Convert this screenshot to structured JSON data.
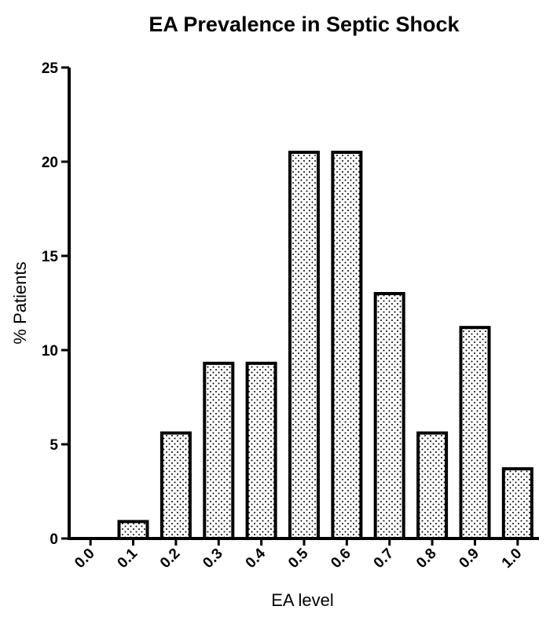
{
  "chart_data": {
    "type": "bar",
    "title": "EA Prevalence in Septic Shock",
    "xlabel": "EA level",
    "ylabel": "% Patients",
    "categories": [
      "0.0",
      "0.1",
      "0.2",
      "0.3",
      "0.4",
      "0.5",
      "0.6",
      "0.7",
      "0.8",
      "0.9",
      "1.0"
    ],
    "values": [
      0,
      0.9,
      5.6,
      9.3,
      9.3,
      20.5,
      20.5,
      13.0,
      5.6,
      11.2,
      3.7
    ],
    "ylim": [
      0,
      25
    ],
    "yticks": [
      "0",
      "5",
      "10",
      "15",
      "20",
      "25"
    ],
    "grid": false,
    "legend": "none",
    "bar_fill": "dotted pattern",
    "colors": {
      "bar_stroke": "#000000",
      "bar_dots": "#000000",
      "bar_background": "#ffffff"
    }
  }
}
